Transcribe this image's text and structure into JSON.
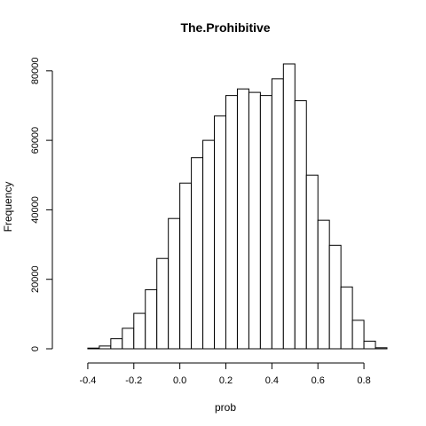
{
  "chart_data": {
    "type": "bar",
    "title": "The.Prohibitive",
    "xlabel": "prob",
    "ylabel": "Frequency",
    "xlim": [
      -0.5,
      0.9
    ],
    "ylim": [
      0,
      82000
    ],
    "grid": false,
    "bin_width": 0.05,
    "bins": [
      {
        "start": -0.45,
        "end": -0.4,
        "value": 0
      },
      {
        "start": -0.4,
        "end": -0.35,
        "value": 200
      },
      {
        "start": -0.35,
        "end": -0.3,
        "value": 800
      },
      {
        "start": -0.3,
        "end": -0.25,
        "value": 2900
      },
      {
        "start": -0.25,
        "end": -0.2,
        "value": 5900
      },
      {
        "start": -0.2,
        "end": -0.15,
        "value": 10200
      },
      {
        "start": -0.15,
        "end": -0.1,
        "value": 17000
      },
      {
        "start": -0.1,
        "end": -0.05,
        "value": 26000
      },
      {
        "start": -0.05,
        "end": 0.0,
        "value": 37500
      },
      {
        "start": 0.0,
        "end": 0.05,
        "value": 47700
      },
      {
        "start": 0.05,
        "end": 0.1,
        "value": 55000
      },
      {
        "start": 0.1,
        "end": 0.15,
        "value": 60000
      },
      {
        "start": 0.15,
        "end": 0.2,
        "value": 67000
      },
      {
        "start": 0.2,
        "end": 0.25,
        "value": 72900
      },
      {
        "start": 0.25,
        "end": 0.3,
        "value": 74800
      },
      {
        "start": 0.3,
        "end": 0.35,
        "value": 73800
      },
      {
        "start": 0.35,
        "end": 0.4,
        "value": 72900
      },
      {
        "start": 0.4,
        "end": 0.45,
        "value": 77700
      },
      {
        "start": 0.45,
        "end": 0.5,
        "value": 82000
      },
      {
        "start": 0.5,
        "end": 0.55,
        "value": 71400
      },
      {
        "start": 0.55,
        "end": 0.6,
        "value": 50000
      },
      {
        "start": 0.6,
        "end": 0.65,
        "value": 37000
      },
      {
        "start": 0.65,
        "end": 0.7,
        "value": 29800
      },
      {
        "start": 0.7,
        "end": 0.75,
        "value": 17800
      },
      {
        "start": 0.75,
        "end": 0.8,
        "value": 8200
      },
      {
        "start": 0.8,
        "end": 0.85,
        "value": 2200
      },
      {
        "start": 0.85,
        "end": 0.9,
        "value": 300
      }
    ],
    "x_ticks": [
      {
        "value": -0.4,
        "label": "-0.4"
      },
      {
        "value": -0.2,
        "label": "-0.2"
      },
      {
        "value": 0.0,
        "label": "0.0"
      },
      {
        "value": 0.2,
        "label": "0.2"
      },
      {
        "value": 0.4,
        "label": "0.4"
      },
      {
        "value": 0.6,
        "label": "0.6"
      },
      {
        "value": 0.8,
        "label": "0.8"
      }
    ],
    "y_ticks": [
      {
        "value": 0,
        "label": "0"
      },
      {
        "value": 20000,
        "label": "20000"
      },
      {
        "value": 40000,
        "label": "40000"
      },
      {
        "value": 60000,
        "label": "60000"
      },
      {
        "value": 80000,
        "label": "80000"
      }
    ],
    "colors": {
      "bar_fill": "#ffffff",
      "bar_stroke": "#000000",
      "axis": "#000000",
      "text": "#000000"
    }
  }
}
